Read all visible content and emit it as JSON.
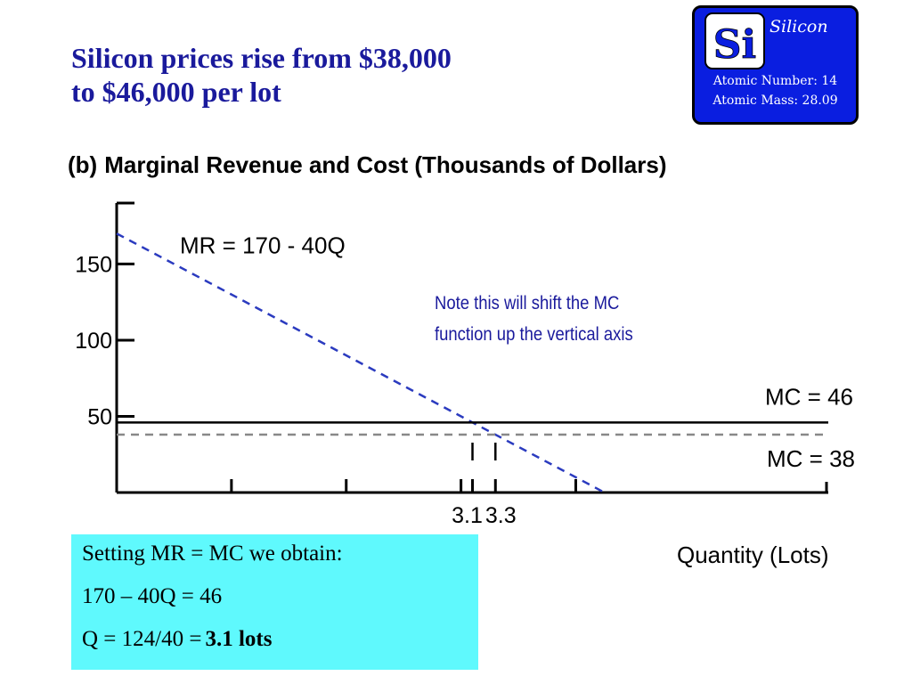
{
  "slide": {
    "title_line1": "Silicon prices rise from $38,000",
    "title_line2": "to $46,000 per lot"
  },
  "badge": {
    "symbol": "Si",
    "name": "Silicon",
    "atomic_number": "Atomic Number: 14",
    "atomic_mass": "Atomic Mass: 28.09",
    "bg_color": "#0a1ee0"
  },
  "chart_heading": {
    "part": "(b)",
    "text": "Marginal Revenue and Cost (Thousands of Dollars)"
  },
  "chart_data": {
    "type": "line",
    "title": "(b) Marginal Revenue and Cost (Thousands of Dollars)",
    "xlabel": "Quantity (Lots)",
    "ylabel": "Marginal Revenue and Cost (Thousands of Dollars)",
    "xlim": [
      0,
      6.2
    ],
    "ylim": [
      0,
      190
    ],
    "y_ticks": [
      50,
      100,
      150
    ],
    "x_ticks": [
      1,
      2,
      3,
      3.1,
      3.3,
      4
    ],
    "x_tick_labels": [
      {
        "x": 3.1,
        "label": "3.1"
      },
      {
        "x": 3.3,
        "label": "3.3"
      }
    ],
    "grid": false,
    "series": [
      {
        "name": "MR = 170 - 40Q",
        "style": "dashed",
        "color": "#2b3bbf",
        "x": [
          0,
          4.25
        ],
        "y": [
          170,
          0
        ]
      },
      {
        "name": "MC = 46",
        "style": "solid",
        "color": "#000000",
        "x": [
          0,
          6.2
        ],
        "y": [
          46,
          46
        ]
      },
      {
        "name": "MC = 38",
        "style": "dashed",
        "color": "#888888",
        "x": [
          0,
          6.2
        ],
        "y": [
          38,
          38
        ]
      }
    ],
    "intersection_markers": [
      3.1,
      3.3
    ],
    "annotation": {
      "line1": "Note this will shift the MC",
      "line2": "function up the vertical axis",
      "color": "#1a1a9c"
    }
  },
  "calc_box": {
    "line1": "Setting MR = MC we obtain:",
    "line2": "170 – 40Q = 46",
    "line3_prefix": "Q = 124/40 =",
    "line3_result": "3.1 lots",
    "bg_color": "#5ff9fd"
  }
}
